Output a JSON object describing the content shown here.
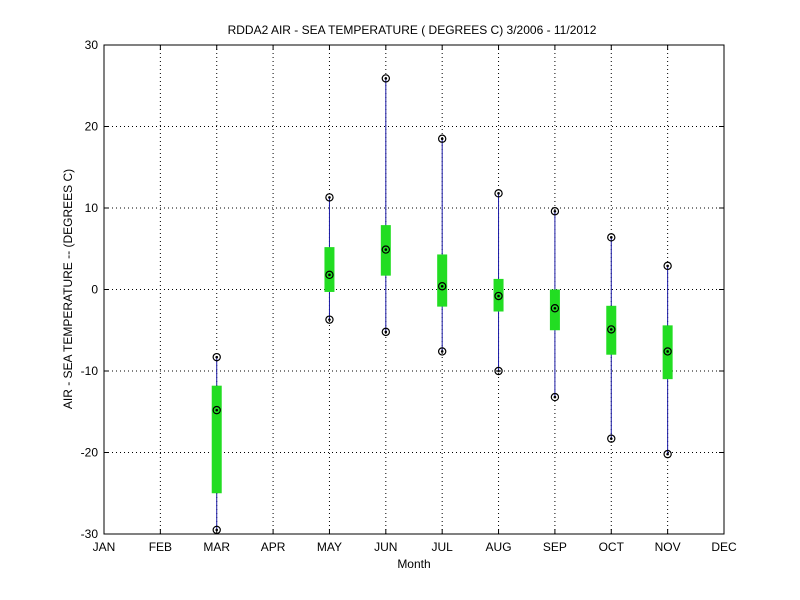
{
  "chart_data": {
    "type": "boxplot",
    "title": "RDDA2  AIR - SEA TEMPERATURE ( DEGREES C) 3/2006 - 11/2012",
    "xlabel": "Month",
    "ylabel": "AIR - SEA TEMPERATURE -- (DEGREES C)",
    "categories": [
      "JAN",
      "FEB",
      "MAR",
      "APR",
      "MAY",
      "JUN",
      "JUL",
      "AUG",
      "SEP",
      "OCT",
      "NOV",
      "DEC"
    ],
    "yticks": [
      "-30",
      "-20",
      "-10",
      "0",
      "10",
      "20",
      "30"
    ],
    "ylim": [
      -30,
      30
    ],
    "grid": true,
    "colors": {
      "whisker": "#1a1aa6",
      "box": "#22dd22",
      "marker": "#000000"
    },
    "series": [
      {
        "category": "MAR",
        "min": -29.5,
        "q1": -25.0,
        "median": -14.8,
        "q3": -11.8,
        "max": -8.3
      },
      {
        "category": "MAY",
        "min": -3.7,
        "q1": -0.3,
        "median": 1.8,
        "q3": 5.2,
        "max": 11.3
      },
      {
        "category": "JUN",
        "min": -5.2,
        "q1": 1.7,
        "median": 4.9,
        "q3": 7.9,
        "max": 25.9
      },
      {
        "category": "JUL",
        "min": -7.6,
        "q1": -2.1,
        "median": 0.4,
        "q3": 4.3,
        "max": 18.5
      },
      {
        "category": "AUG",
        "min": -10.0,
        "q1": -2.7,
        "median": -0.8,
        "q3": 1.3,
        "max": 11.8
      },
      {
        "category": "SEP",
        "min": -13.2,
        "q1": -5.0,
        "median": -2.3,
        "q3": 0.0,
        "max": 9.6
      },
      {
        "category": "OCT",
        "min": -18.3,
        "q1": -8.0,
        "median": -4.9,
        "q3": -2.0,
        "max": 6.4
      },
      {
        "category": "NOV",
        "min": -20.2,
        "q1": -11.0,
        "median": -7.6,
        "q3": -4.4,
        "max": 2.9
      }
    ]
  }
}
